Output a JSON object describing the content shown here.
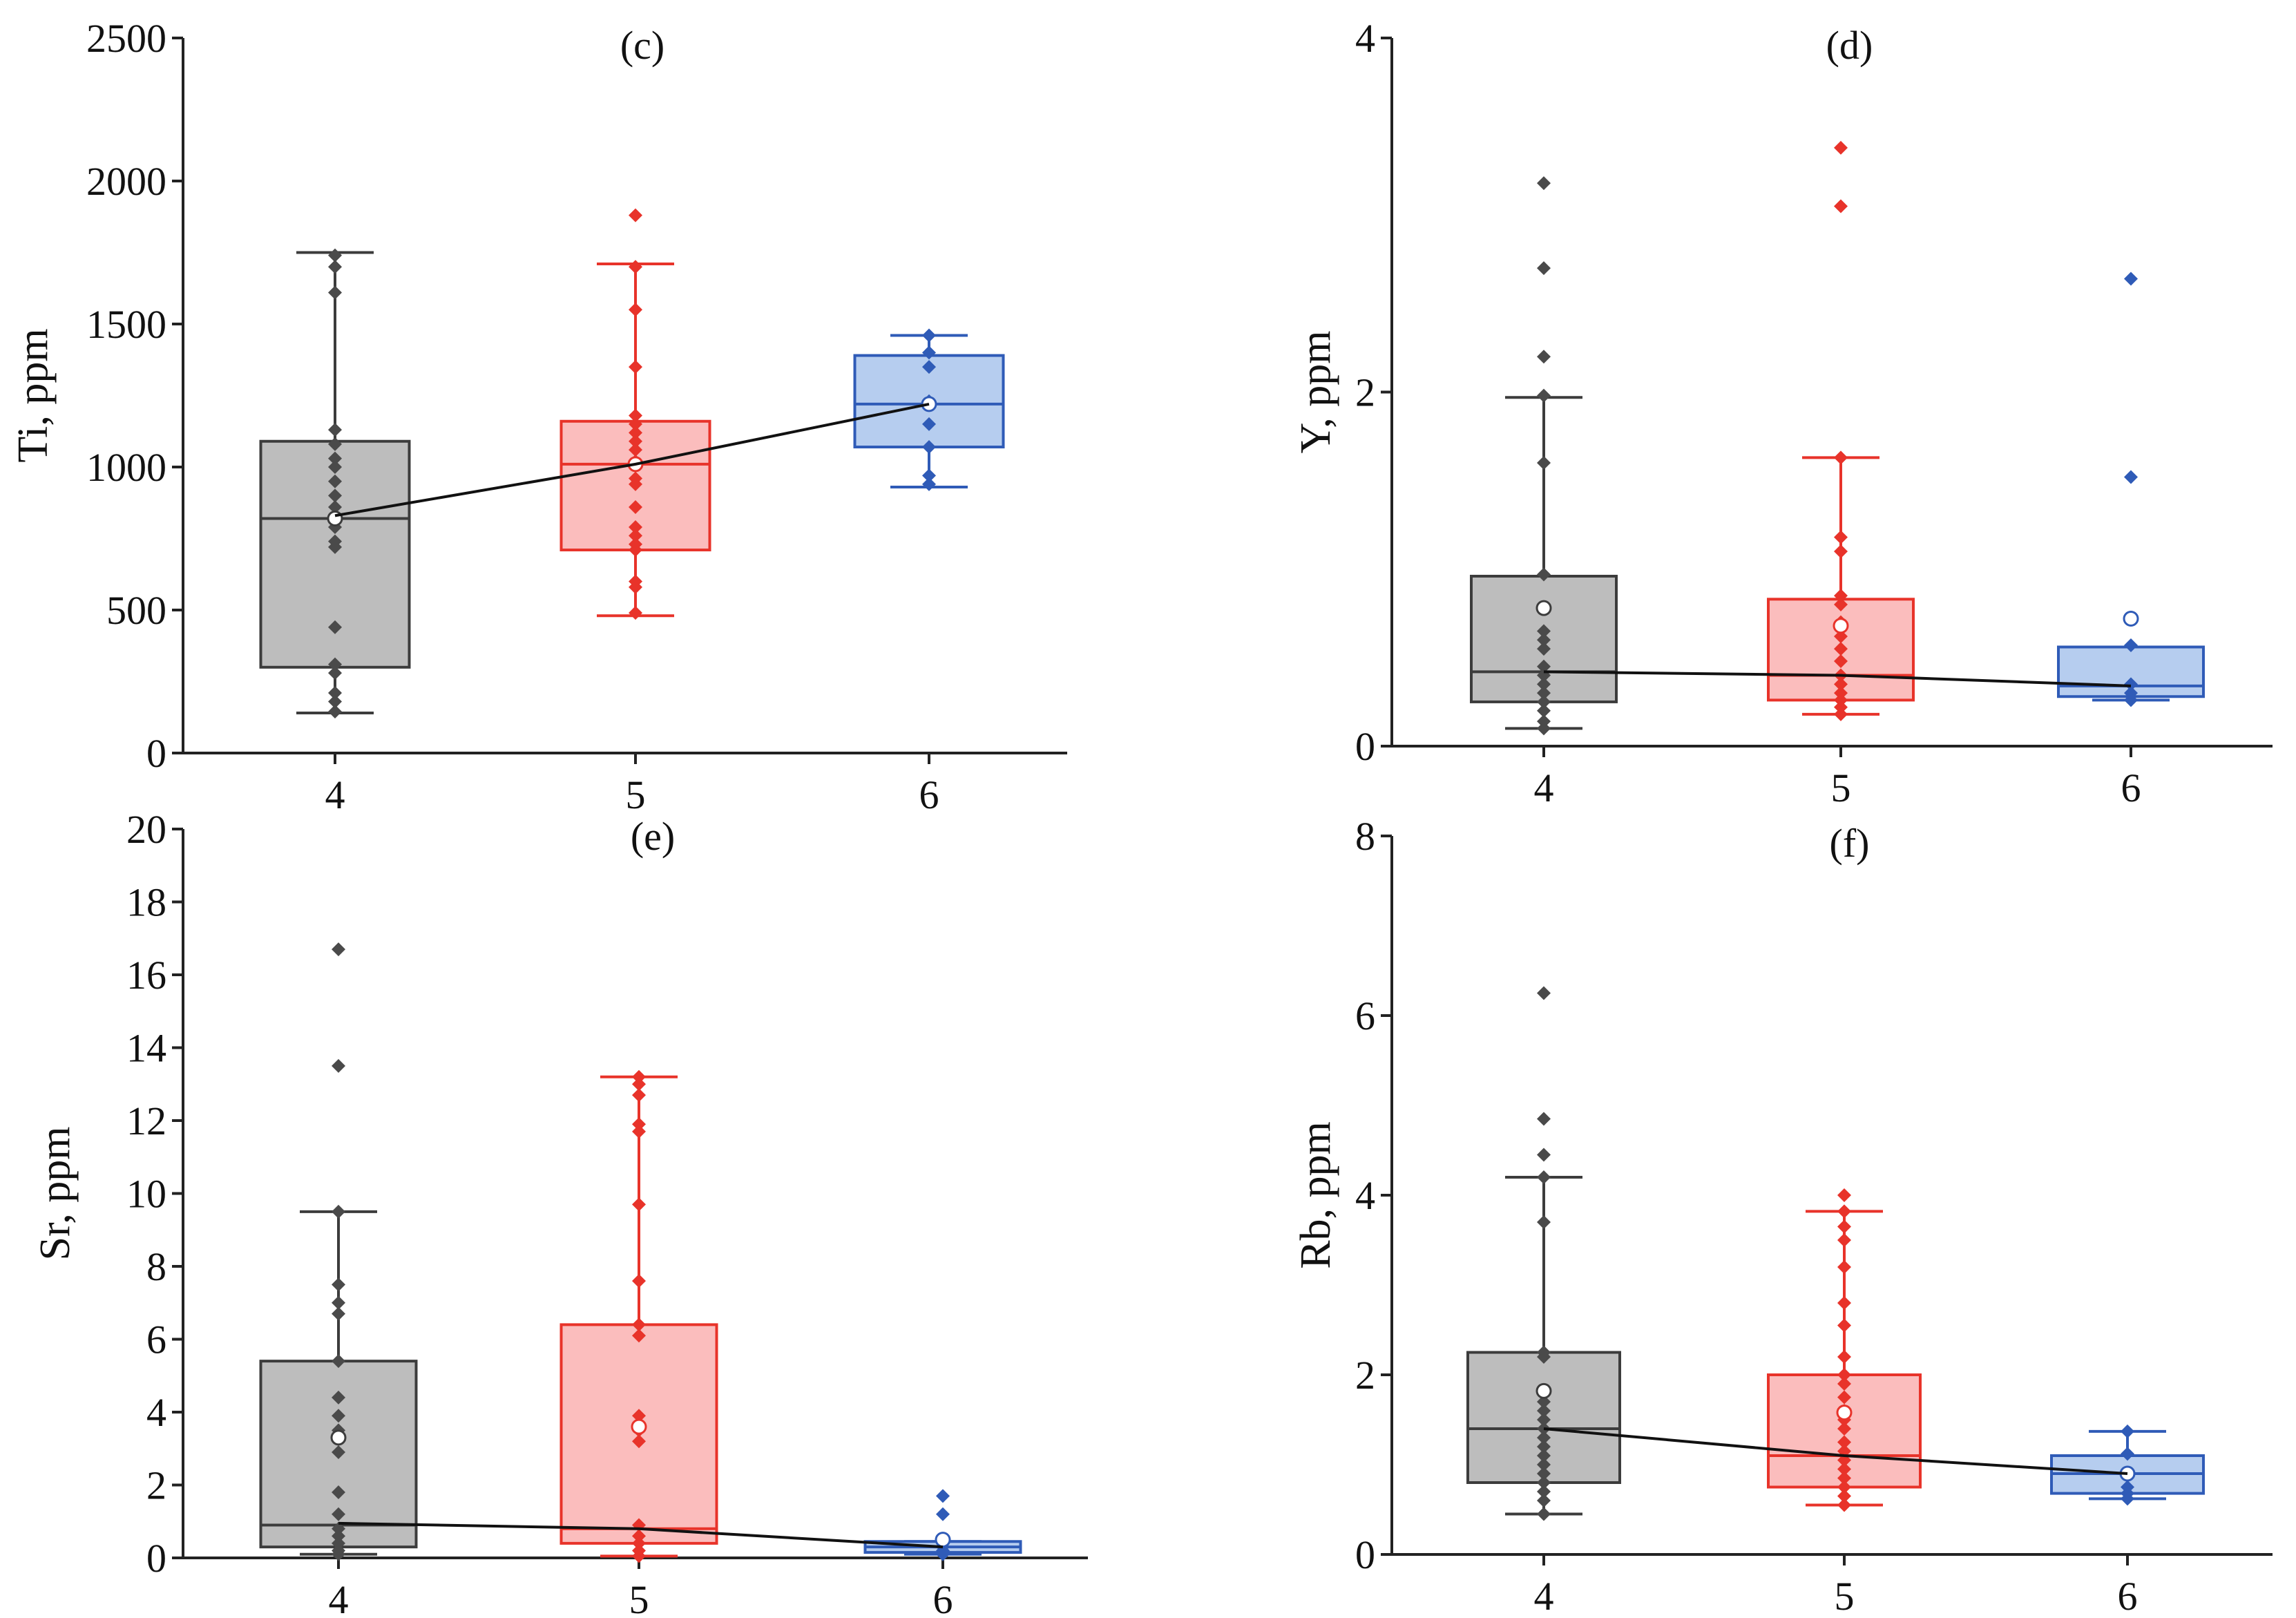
{
  "chart_data": [
    {
      "type": "box",
      "panel": "(c)",
      "ylabel": "Ti, ppm",
      "ylim": [
        0,
        2500
      ],
      "yticks": [
        0,
        500,
        1000,
        1500,
        2000,
        2500
      ],
      "categories": [
        "4",
        "5",
        "6"
      ],
      "series": [
        {
          "category": "4",
          "color": "#4a4a4a",
          "fill": "#bdbdbd",
          "box_stroke": "#3c3c3c",
          "whisker_low": 140,
          "q1": 300,
          "median": 820,
          "q3": 1090,
          "whisker_high": 1750,
          "mean": 820,
          "points": [
            145,
            180,
            210,
            280,
            310,
            440,
            720,
            740,
            790,
            820,
            860,
            900,
            950,
            1000,
            1030,
            1080,
            1130,
            1610,
            1700,
            1740
          ]
        },
        {
          "category": "5",
          "color": "#e8332a",
          "fill": "#fbbdbd",
          "box_stroke": "#e8332a",
          "whisker_low": 480,
          "q1": 710,
          "median": 1010,
          "q3": 1160,
          "whisker_high": 1710,
          "mean": 1010,
          "points": [
            490,
            580,
            600,
            710,
            730,
            760,
            790,
            860,
            940,
            960,
            1020,
            1060,
            1090,
            1120,
            1150,
            1180,
            1350,
            1550,
            1700,
            1880
          ]
        },
        {
          "category": "6",
          "color": "#2f5bb7",
          "fill": "#b6cdef",
          "box_stroke": "#2f5bb7",
          "whisker_low": 930,
          "q1": 1070,
          "median": 1220,
          "q3": 1390,
          "whisker_high": 1460,
          "mean": 1220,
          "points": [
            940,
            970,
            1070,
            1150,
            1230,
            1350,
            1400,
            1460
          ]
        }
      ],
      "trend": [
        830,
        1010,
        1220
      ]
    },
    {
      "type": "box",
      "panel": "(d)",
      "ylabel": "Y, ppm",
      "ylim": [
        0,
        4
      ],
      "yticks": [
        0,
        2,
        4
      ],
      "categories": [
        "4",
        "5",
        "6"
      ],
      "series": [
        {
          "category": "4",
          "color": "#4a4a4a",
          "fill": "#bdbdbd",
          "box_stroke": "#3c3c3c",
          "whisker_low": 0.1,
          "q1": 0.25,
          "median": 0.42,
          "q3": 0.96,
          "whisker_high": 1.97,
          "mean": 0.78,
          "points": [
            0.1,
            0.14,
            0.2,
            0.25,
            0.3,
            0.35,
            0.4,
            0.45,
            0.55,
            0.6,
            0.65,
            0.97,
            1.6,
            1.98,
            2.2,
            2.7,
            3.18
          ]
        },
        {
          "category": "5",
          "color": "#e8332a",
          "fill": "#fbbdbd",
          "box_stroke": "#e8332a",
          "whisker_low": 0.18,
          "q1": 0.26,
          "median": 0.4,
          "q3": 0.83,
          "whisker_high": 1.63,
          "mean": 0.68,
          "points": [
            0.18,
            0.22,
            0.26,
            0.3,
            0.35,
            0.4,
            0.48,
            0.55,
            0.62,
            0.7,
            0.8,
            0.85,
            1.1,
            1.18,
            1.63,
            3.05,
            3.38
          ]
        },
        {
          "category": "6",
          "color": "#2f5bb7",
          "fill": "#b6cdef",
          "box_stroke": "#2f5bb7",
          "whisker_low": 0.26,
          "q1": 0.28,
          "median": 0.34,
          "q3": 0.56,
          "whisker_high": 0.56,
          "mean": 0.72,
          "points": [
            0.26,
            0.3,
            0.35,
            0.57,
            1.52,
            2.64
          ]
        }
      ],
      "trend": [
        0.42,
        0.4,
        0.34
      ]
    },
    {
      "type": "box",
      "panel": "(e)",
      "ylabel": "Sr, ppm",
      "ylim": [
        0,
        20
      ],
      "yticks": [
        0,
        2,
        4,
        6,
        8,
        10,
        12,
        14,
        16,
        18,
        20
      ],
      "categories": [
        "4",
        "5",
        "6"
      ],
      "series": [
        {
          "category": "4",
          "color": "#4a4a4a",
          "fill": "#bdbdbd",
          "box_stroke": "#3c3c3c",
          "whisker_low": 0.1,
          "q1": 0.3,
          "median": 0.9,
          "q3": 5.4,
          "whisker_high": 9.5,
          "mean": 3.3,
          "points": [
            0.1,
            0.2,
            0.4,
            0.6,
            0.8,
            1.2,
            1.8,
            2.9,
            3.3,
            3.5,
            3.9,
            4.4,
            5.4,
            6.7,
            7.0,
            7.5,
            9.5,
            13.5,
            16.7
          ]
        },
        {
          "category": "5",
          "color": "#e8332a",
          "fill": "#fbbdbd",
          "box_stroke": "#e8332a",
          "whisker_low": 0.05,
          "q1": 0.4,
          "median": 0.8,
          "q3": 6.4,
          "whisker_high": 13.2,
          "mean": 3.6,
          "points": [
            0.05,
            0.2,
            0.4,
            0.6,
            0.9,
            3.2,
            3.5,
            3.9,
            6.1,
            6.4,
            7.6,
            9.7,
            11.7,
            11.9,
            12.7,
            13.0,
            13.2
          ]
        },
        {
          "category": "6",
          "color": "#2f5bb7",
          "fill": "#b6cdef",
          "box_stroke": "#2f5bb7",
          "whisker_low": 0.1,
          "q1": 0.15,
          "median": 0.3,
          "q3": 0.45,
          "whisker_high": 0.45,
          "mean": 0.5,
          "points": [
            0.1,
            0.2,
            0.3,
            0.45,
            1.2,
            1.7
          ]
        }
      ],
      "trend": [
        0.95,
        0.8,
        0.3
      ]
    },
    {
      "type": "box",
      "panel": "(f)",
      "ylabel": "Rb, ppm",
      "ylim": [
        0,
        8
      ],
      "yticks": [
        0,
        2,
        4,
        6,
        8
      ],
      "categories": [
        "4",
        "5",
        "6"
      ],
      "series": [
        {
          "category": "4",
          "color": "#4a4a4a",
          "fill": "#bdbdbd",
          "box_stroke": "#3c3c3c",
          "whisker_low": 0.45,
          "q1": 0.8,
          "median": 1.4,
          "q3": 2.25,
          "whisker_high": 4.2,
          "mean": 1.82,
          "points": [
            0.45,
            0.6,
            0.7,
            0.8,
            0.9,
            1.0,
            1.1,
            1.2,
            1.3,
            1.4,
            1.5,
            1.6,
            1.7,
            1.8,
            2.2,
            2.25,
            3.7,
            4.2,
            4.45,
            4.85,
            6.25
          ]
        },
        {
          "category": "5",
          "color": "#e8332a",
          "fill": "#fbbdbd",
          "box_stroke": "#e8332a",
          "whisker_low": 0.55,
          "q1": 0.75,
          "median": 1.1,
          "q3": 2.0,
          "whisker_high": 3.82,
          "mean": 1.58,
          "points": [
            0.55,
            0.65,
            0.75,
            0.85,
            0.95,
            1.05,
            1.15,
            1.25,
            1.4,
            1.5,
            1.6,
            1.75,
            1.9,
            2.0,
            2.2,
            2.55,
            2.8,
            3.2,
            3.5,
            3.65,
            3.82,
            4.0
          ]
        },
        {
          "category": "6",
          "color": "#2f5bb7",
          "fill": "#b6cdef",
          "box_stroke": "#2f5bb7",
          "whisker_low": 0.62,
          "q1": 0.68,
          "median": 0.9,
          "q3": 1.1,
          "whisker_high": 1.37,
          "mean": 0.9,
          "points": [
            0.62,
            0.68,
            0.75,
            0.9,
            1.12,
            1.37
          ]
        }
      ],
      "trend": [
        1.4,
        1.1,
        0.9
      ]
    }
  ]
}
